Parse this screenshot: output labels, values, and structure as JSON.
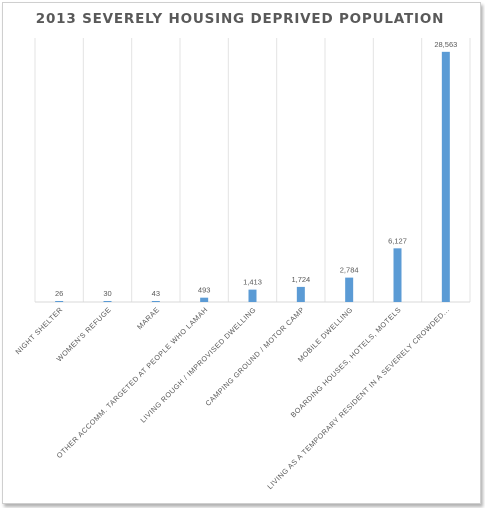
{
  "chart_data": {
    "type": "bar",
    "title": "2013 SEVERELY HOUSING DEPRIVED POPULATION",
    "categories": [
      "NIGHT SHELTER",
      "WOMEN'S REFUGE",
      "MARAE",
      "OTHER ACCOMM. TARGETED AT PEOPLE WHO LAMAH",
      "LIVING ROUGH / IMPROVISED DWELLING",
      "CAMPING GROUND / MOTOR CAMP",
      "MOBILE DWELLING",
      "BOARDING HOUSES, HOTELS, MOTELS",
      "LIVING AS A TEMPORARY RESIDENT IN A SEVERELY CROWDED..."
    ],
    "values": [
      26,
      30,
      43,
      493,
      1413,
      1724,
      2784,
      6127,
      28563
    ],
    "data_labels": [
      "26",
      "30",
      "43",
      "493",
      "1,413",
      "1,724",
      "2,784",
      "6,127",
      "28,563"
    ],
    "xlabel": "",
    "ylabel": "",
    "ylim": [
      0,
      29000
    ],
    "grid": "vertical category separators",
    "legend": "none",
    "bar_color": "#5b9bd5"
  }
}
